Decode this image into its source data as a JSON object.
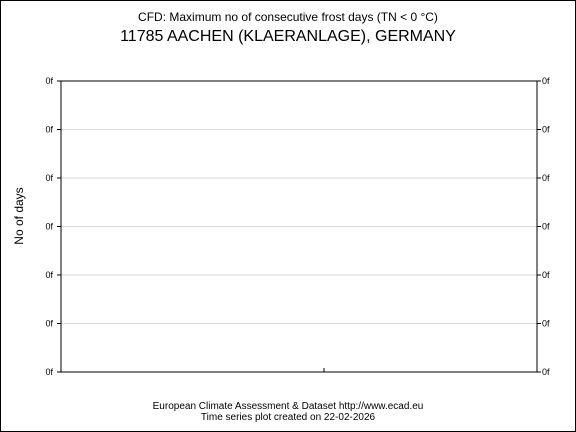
{
  "chart_data": {
    "type": "line",
    "title": "CFD: Maximum no of consecutive frost days (TN < 0 °C)",
    "subtitle": "11785 AACHEN (KLAERANLAGE), GERMANY",
    "ylabel": "No of days",
    "xlabel": "",
    "y_tick_labels": [
      "0f",
      "0f",
      "0f",
      "0f",
      "0f",
      "0f",
      "0f"
    ],
    "grid": true,
    "series": [],
    "colors": {
      "axis": "#000000",
      "grid": "#d9d9d9"
    }
  },
  "footer": {
    "line1": "European Climate Assessment & Dataset  http://www.ecad.eu",
    "line2": "Time series plot created on 22-02-2026"
  }
}
